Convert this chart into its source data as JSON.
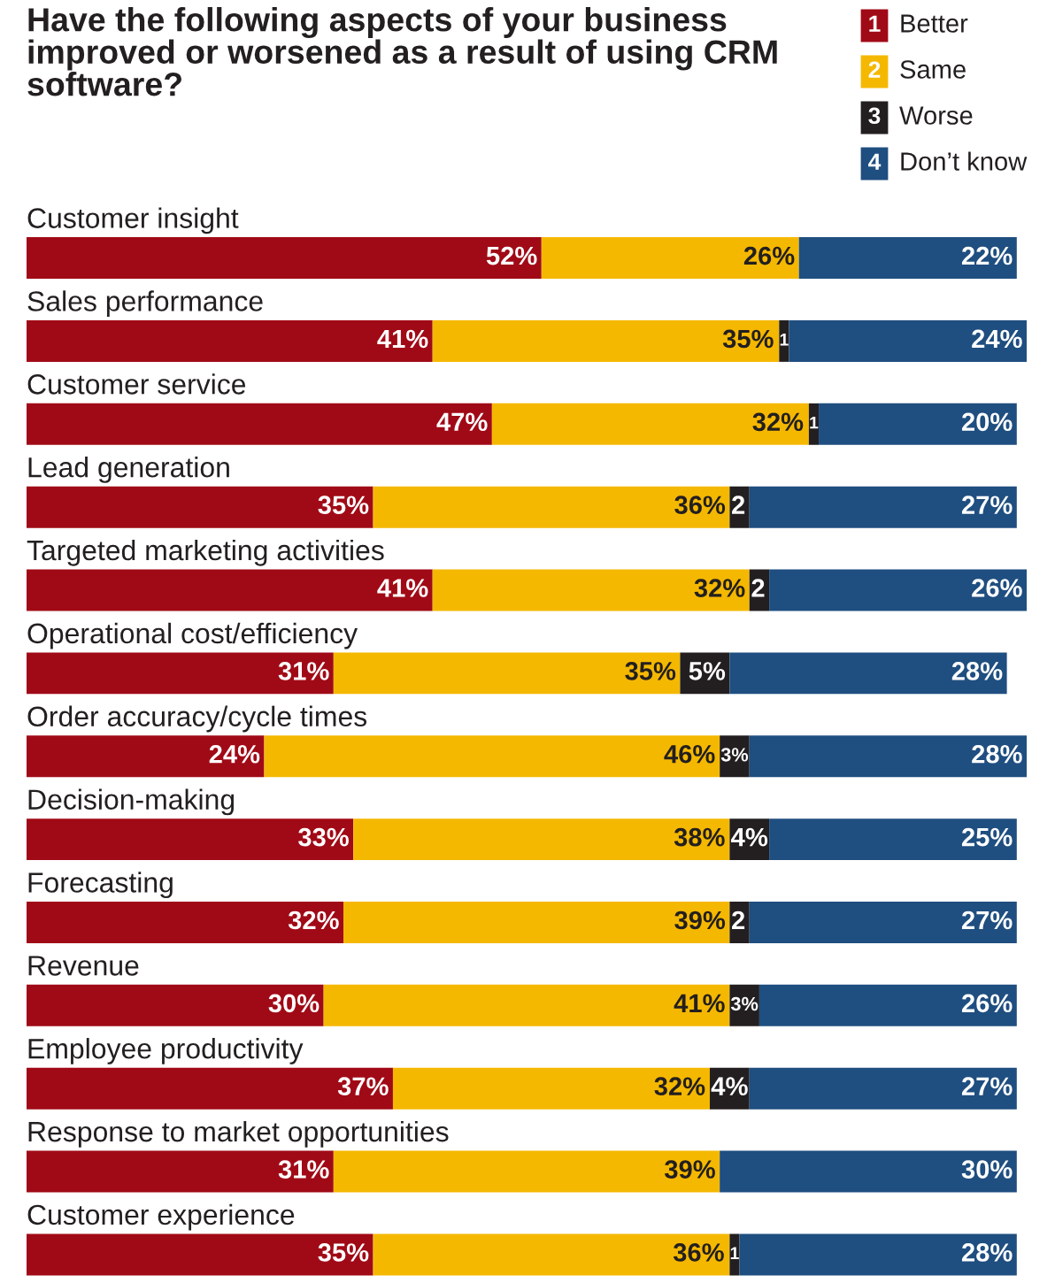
{
  "chart_data": {
    "type": "bar",
    "orientation": "horizontal",
    "stacked": true,
    "title": "Have the following aspects of your business improved or worsened as a result of using CRM software?",
    "categories": [
      "Customer insight",
      "Sales performance",
      "Customer service",
      "Lead generation",
      "Targeted marketing activities",
      "Operational cost/efficiency",
      "Order accuracy/cycle times",
      "Decision-making",
      "Forecasting",
      "Revenue",
      "Employee productivity",
      "Response to market opportunities",
      "Customer experience"
    ],
    "series": [
      {
        "name": "Better",
        "color": "#a00a16",
        "values": [
          52,
          41,
          47,
          35,
          41,
          31,
          24,
          33,
          32,
          30,
          37,
          31,
          35
        ],
        "value_labels": [
          "52%",
          "41%",
          "47%",
          "35%",
          "41%",
          "31%",
          "24%",
          "33%",
          "32%",
          "30%",
          "37%",
          "31%",
          "35%"
        ]
      },
      {
        "name": "Same",
        "color": "#f5b800",
        "values": [
          26,
          35,
          32,
          36,
          32,
          35,
          46,
          38,
          39,
          41,
          32,
          39,
          36
        ],
        "value_labels": [
          "26%",
          "35%",
          "32%",
          "36%",
          "32%",
          "35%",
          "46%",
          "38%",
          "39%",
          "41%",
          "32%",
          "39%",
          "36%"
        ]
      },
      {
        "name": "Worse",
        "color": "#231f20",
        "values": [
          0,
          1,
          1,
          2,
          2,
          5,
          3,
          4,
          2,
          3,
          4,
          0,
          1
        ],
        "value_labels": [
          null,
          "1",
          "1",
          "2",
          "2",
          "5%",
          "3%",
          "4%",
          "2",
          "3%",
          "4%",
          null,
          "1"
        ]
      },
      {
        "name": "Don’t know",
        "color": "#1f4e80",
        "values": [
          22,
          24,
          20,
          27,
          26,
          28,
          28,
          25,
          27,
          26,
          27,
          30,
          28
        ],
        "value_labels": [
          "22%",
          "24%",
          "20%",
          "27%",
          "26%",
          "28%",
          "28%",
          "25%",
          "27%",
          "26%",
          "27%",
          "30%",
          "28%"
        ]
      }
    ],
    "xlim": [
      0,
      101
    ],
    "legend": "top right",
    "annotations": [
      "1",
      "2",
      "3",
      "4"
    ]
  }
}
